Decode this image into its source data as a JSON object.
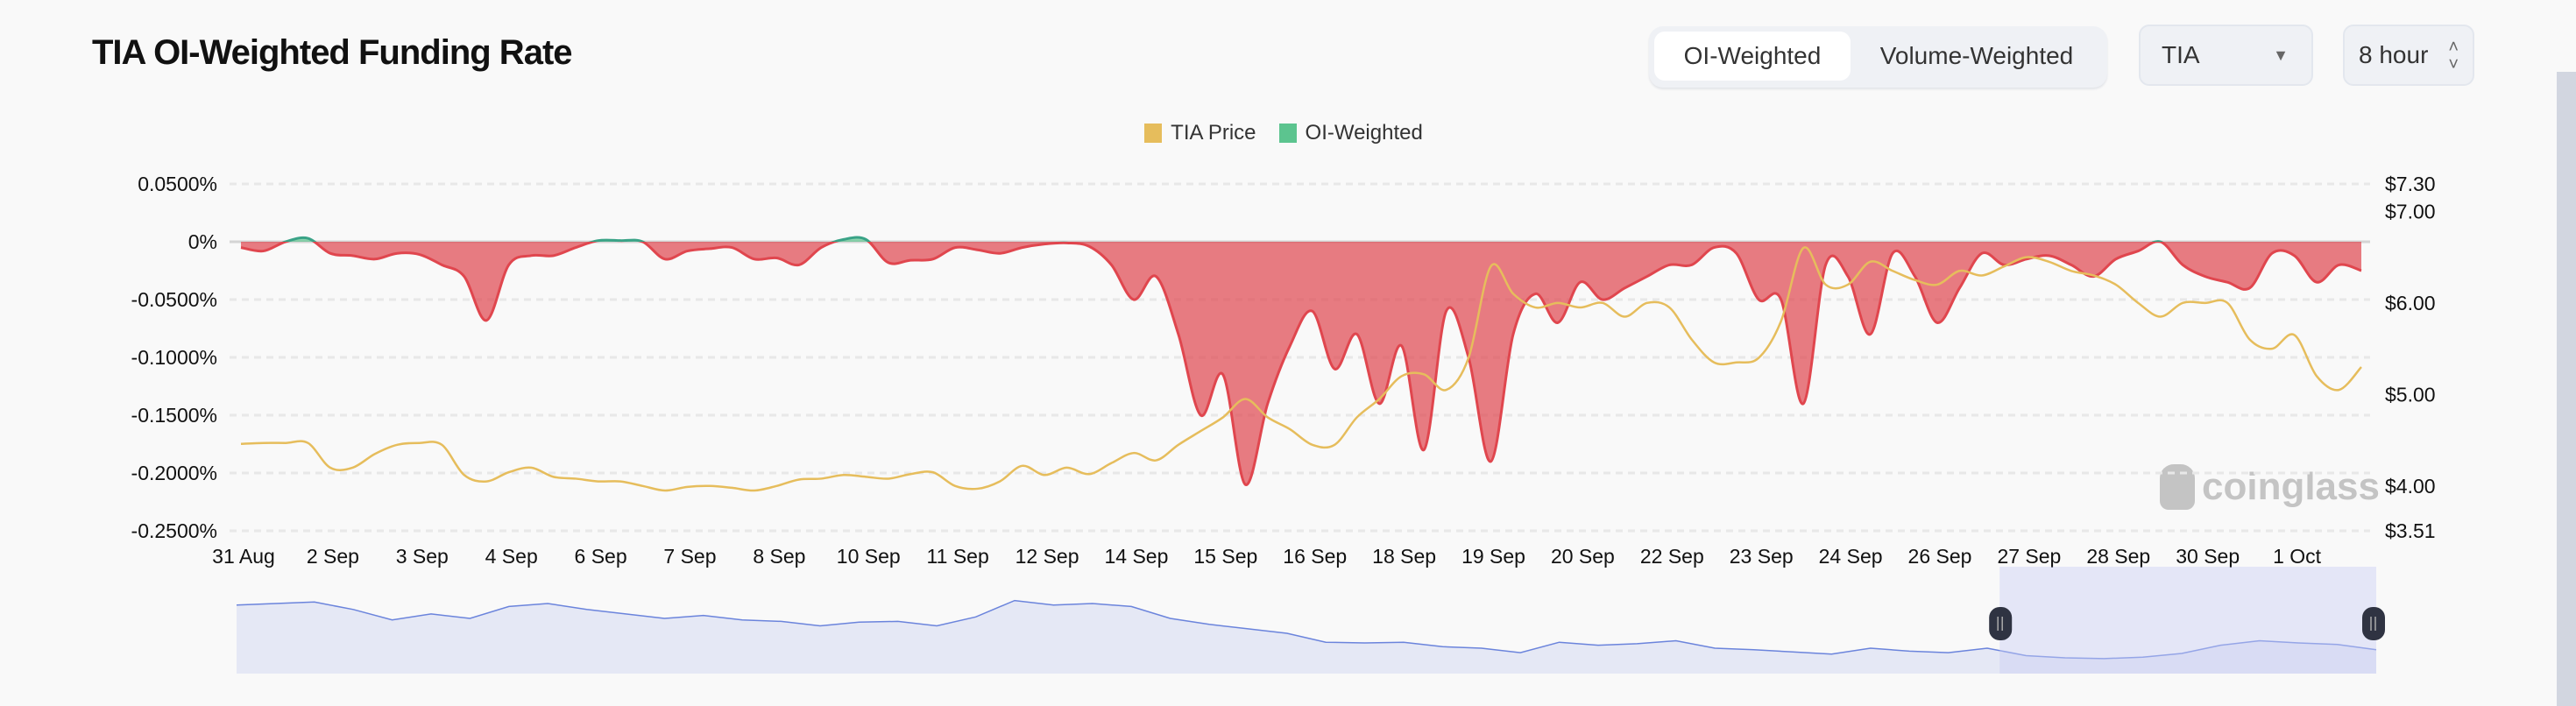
{
  "header": {
    "title": "TIA OI-Weighted Funding Rate",
    "toggle": {
      "active": "OI-Weighted",
      "other": "Volume-Weighted"
    },
    "coin_select": {
      "value": "TIA",
      "icon": "caret-down-icon"
    },
    "interval_select": {
      "value": "8 hour",
      "icon": "up-down-chevron-icon"
    }
  },
  "watermark": "coinglass",
  "chart_data": {
    "type": "area+line",
    "title": "TIA OI-Weighted Funding Rate",
    "legend": [
      {
        "name": "TIA Price",
        "color": "#e6bd5c"
      },
      {
        "name": "OI-Weighted",
        "color": "#5cc48f"
      }
    ],
    "legend_placement": "top-center",
    "left_axis": {
      "ticks": [
        "0.0500%",
        "0%",
        "-0.0500%",
        "-0.1000%",
        "-0.1500%",
        "-0.2000%",
        "-0.2500%"
      ],
      "tick_values": [
        0.05,
        0,
        -0.05,
        -0.1,
        -0.15,
        -0.2,
        -0.25
      ],
      "range": [
        -0.25,
        0.05
      ]
    },
    "right_axis": {
      "ticks": [
        "$7.30",
        "$7.00",
        "$6.00",
        "$5.00",
        "$4.00",
        "$3.51"
      ],
      "tick_values": [
        7.3,
        7.0,
        6.0,
        5.0,
        4.0,
        3.51
      ],
      "range": [
        3.51,
        7.3
      ]
    },
    "x_labels": [
      "31 Aug",
      "2 Sep",
      "3 Sep",
      "4 Sep",
      "6 Sep",
      "7 Sep",
      "8 Sep",
      "10 Sep",
      "11 Sep",
      "12 Sep",
      "14 Sep",
      "15 Sep",
      "16 Sep",
      "18 Sep",
      "19 Sep",
      "20 Sep",
      "22 Sep",
      "23 Sep",
      "24 Sep",
      "26 Sep",
      "27 Sep",
      "28 Sep",
      "30 Sep",
      "1 Oct"
    ],
    "x_label_every": 4,
    "grid": true,
    "series": [
      {
        "name": "OI-Weighted",
        "unit": "%",
        "positive_color": "#5cc48f",
        "negative_color": "#e0464e",
        "values": [
          -0.005,
          -0.008,
          0.0,
          0.003,
          -0.01,
          -0.012,
          -0.015,
          -0.01,
          -0.011,
          -0.02,
          -0.03,
          -0.068,
          -0.02,
          -0.012,
          -0.012,
          -0.005,
          0.001,
          0.001,
          0.0,
          -0.015,
          -0.008,
          -0.006,
          -0.005,
          -0.015,
          -0.014,
          -0.02,
          -0.005,
          0.002,
          0.002,
          -0.018,
          -0.016,
          -0.015,
          -0.005,
          -0.007,
          -0.01,
          -0.005,
          -0.002,
          -0.001,
          -0.004,
          -0.02,
          -0.05,
          -0.03,
          -0.08,
          -0.15,
          -0.115,
          -0.21,
          -0.14,
          -0.09,
          -0.06,
          -0.11,
          -0.08,
          -0.14,
          -0.09,
          -0.18,
          -0.06,
          -0.1,
          -0.19,
          -0.08,
          -0.045,
          -0.07,
          -0.035,
          -0.05,
          -0.04,
          -0.03,
          -0.02,
          -0.02,
          -0.005,
          -0.01,
          -0.05,
          -0.05,
          -0.14,
          -0.02,
          -0.03,
          -0.08,
          -0.01,
          -0.03,
          -0.07,
          -0.04,
          -0.01,
          -0.02,
          -0.015,
          -0.012,
          -0.02,
          -0.03,
          -0.015,
          -0.008,
          0.0,
          -0.02,
          -0.03,
          -0.035,
          -0.04,
          -0.01,
          -0.012,
          -0.035,
          -0.02,
          -0.025
        ]
      },
      {
        "name": "TIA Price",
        "unit": "$",
        "color": "#e6bd5c",
        "values": [
          4.46,
          4.47,
          4.47,
          4.47,
          4.2,
          4.2,
          4.35,
          4.45,
          4.47,
          4.45,
          4.12,
          4.05,
          4.15,
          4.2,
          4.1,
          4.08,
          4.05,
          4.05,
          4.0,
          3.95,
          3.99,
          4.0,
          3.98,
          3.95,
          4.0,
          4.07,
          4.08,
          4.12,
          4.1,
          4.08,
          4.13,
          4.15,
          4.0,
          3.97,
          4.05,
          4.22,
          4.12,
          4.2,
          4.13,
          4.25,
          4.36,
          4.28,
          4.45,
          4.6,
          4.75,
          4.95,
          4.75,
          4.62,
          4.45,
          4.45,
          4.75,
          4.95,
          5.2,
          5.22,
          5.05,
          5.4,
          6.4,
          6.1,
          5.95,
          6.0,
          5.95,
          6.0,
          5.85,
          6.0,
          5.95,
          5.6,
          5.35,
          5.35,
          5.4,
          5.8,
          6.6,
          6.2,
          6.2,
          6.45,
          6.35,
          6.25,
          6.2,
          6.35,
          6.3,
          6.4,
          6.5,
          6.45,
          6.35,
          6.3,
          6.2,
          6.0,
          5.85,
          6.0,
          6.0,
          6.0,
          5.6,
          5.5,
          5.65,
          5.2,
          5.05,
          5.3
        ]
      }
    ],
    "navigator": {
      "values": [
        0.78,
        0.8,
        0.82,
        0.72,
        0.58,
        0.66,
        0.6,
        0.76,
        0.8,
        0.72,
        0.66,
        0.6,
        0.64,
        0.58,
        0.56,
        0.5,
        0.55,
        0.56,
        0.5,
        0.62,
        0.84,
        0.78,
        0.8,
        0.76,
        0.6,
        0.52,
        0.46,
        0.4,
        0.28,
        0.27,
        0.28,
        0.22,
        0.2,
        0.14,
        0.28,
        0.24,
        0.26,
        0.3,
        0.2,
        0.18,
        0.15,
        0.12,
        0.2,
        0.16,
        0.14,
        0.2,
        0.1,
        0.07,
        0.06,
        0.08,
        0.13,
        0.24,
        0.3,
        0.27,
        0.25,
        0.18
      ],
      "selected_range": [
        0.824,
        1.0
      ]
    }
  }
}
